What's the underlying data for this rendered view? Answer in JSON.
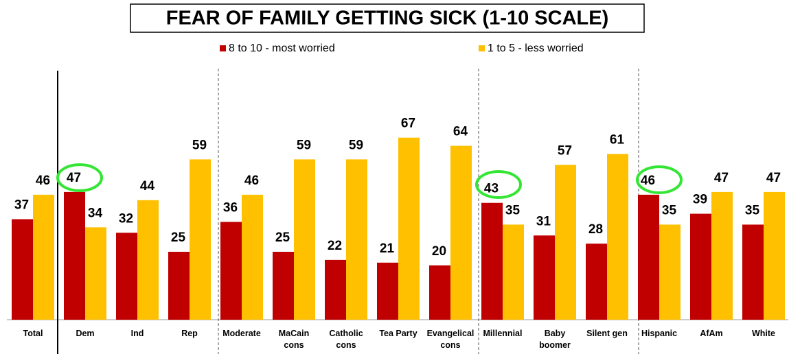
{
  "chart_data": {
    "type": "bar",
    "title": "FEAR OF FAMILY GETTING SICK (1-10 SCALE)",
    "categories": [
      "Total",
      "Dem",
      "Ind",
      "Rep",
      "Moderate",
      "MaCain cons",
      "Catholic cons",
      "Tea Party",
      "Evangelical cons",
      "Millennial",
      "Baby boomer",
      "Silent gen",
      "Hispanic",
      "AfAm",
      "White"
    ],
    "series": [
      {
        "name": "8 to 10 - most worried",
        "color": "#c00000",
        "values": [
          37,
          47,
          32,
          25,
          36,
          25,
          22,
          21,
          20,
          43,
          31,
          28,
          46,
          39,
          35
        ]
      },
      {
        "name": "1 to 5 - less worried",
        "color": "#ffc000",
        "values": [
          46,
          34,
          44,
          59,
          46,
          59,
          59,
          67,
          64,
          35,
          57,
          61,
          35,
          47,
          47
        ]
      }
    ]
  }
}
